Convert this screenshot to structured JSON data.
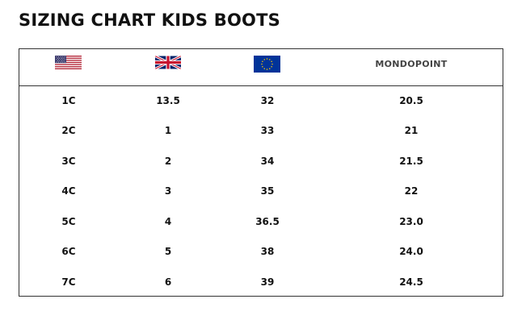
{
  "title": "SIZING CHART KIDS BOOTS",
  "header": {
    "us_flag_icon": "us-flag-icon",
    "uk_flag_icon": "uk-flag-icon",
    "eu_flag_icon": "eu-flag-icon",
    "mondopoint_label": "MONDOPOINT"
  },
  "rows": [
    {
      "us": "1C",
      "uk": "13.5",
      "eu": "32",
      "mondopoint": "20.5"
    },
    {
      "us": "2C",
      "uk": "1",
      "eu": "33",
      "mondopoint": "21"
    },
    {
      "us": "3C",
      "uk": "2",
      "eu": "34",
      "mondopoint": "21.5"
    },
    {
      "us": "4C",
      "uk": "3",
      "eu": "35",
      "mondopoint": "22"
    },
    {
      "us": "5C",
      "uk": "4",
      "eu": "36.5",
      "mondopoint": "23.0"
    },
    {
      "us": "6C",
      "uk": "5",
      "eu": "38",
      "mondopoint": "24.0"
    },
    {
      "us": "7C",
      "uk": "6",
      "eu": "39",
      "mondopoint": "24.5"
    }
  ],
  "colors": {
    "us_red": "#B22234",
    "us_blue": "#3C3B6E",
    "uk_blue": "#012169",
    "uk_red": "#C8102E",
    "eu_blue": "#003399",
    "eu_gold": "#FFCC00",
    "border": "#333333"
  }
}
